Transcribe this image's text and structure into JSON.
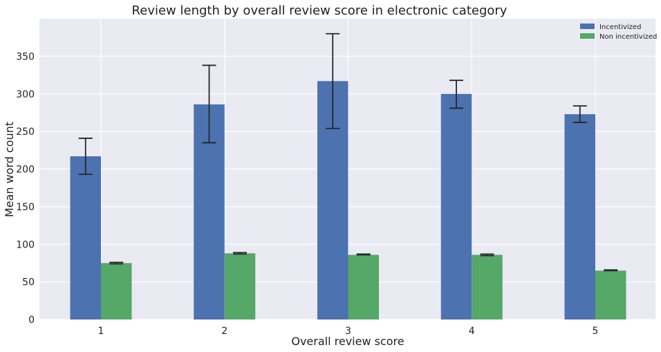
{
  "chart_data": {
    "type": "bar",
    "title": "Review length by overall review score in electronic category",
    "xlabel": "Overall review score",
    "ylabel": "Mean word count",
    "categories": [
      "1",
      "2",
      "3",
      "4",
      "5"
    ],
    "ylim": [
      0,
      400
    ],
    "yticks": [
      0,
      50,
      100,
      150,
      200,
      250,
      300,
      350
    ],
    "grid": true,
    "legend_position": "top-right",
    "series": [
      {
        "name": "Incentivized",
        "color": "#4c72b0",
        "values": [
          217,
          286,
          317,
          300,
          273
        ],
        "error_low": [
          193,
          235,
          254,
          281,
          262
        ],
        "error_high": [
          241,
          338,
          380,
          318,
          284
        ]
      },
      {
        "name": "Non incentivized",
        "color": "#55a868",
        "values": [
          75,
          88,
          86,
          86,
          65
        ],
        "error_low": [
          74,
          87,
          86,
          85,
          65
        ],
        "error_high": [
          76,
          89,
          87,
          87,
          66
        ]
      }
    ]
  }
}
